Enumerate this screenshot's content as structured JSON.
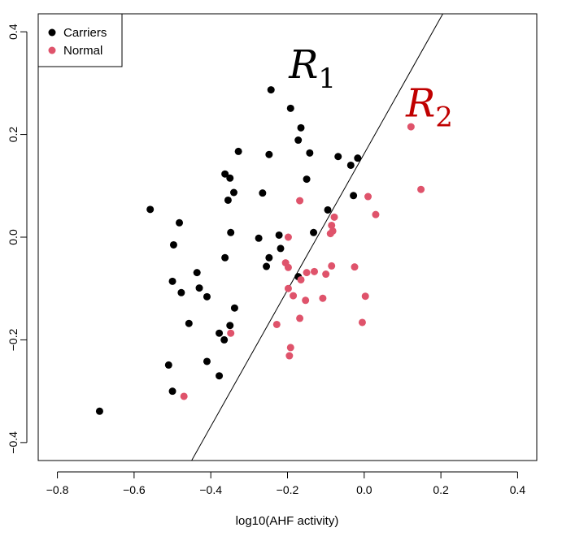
{
  "chart_data": {
    "type": "scatter",
    "xlabel": "log10(AHF activity)",
    "ylabel": "",
    "xlim": [
      -0.85,
      0.45
    ],
    "ylim": [
      -0.435,
      0.435
    ],
    "x_ticks": [
      -0.8,
      -0.6,
      -0.4,
      -0.2,
      0.0,
      0.2,
      0.4
    ],
    "x_tick_labels": [
      "−0.8",
      "−0.6",
      "−0.4",
      "−0.2",
      "0.0",
      "0.2",
      "0.4"
    ],
    "y_ticks": [
      -0.4,
      -0.2,
      0.0,
      0.2,
      0.4
    ],
    "y_tick_labels": [
      "−0.4",
      "−0.2",
      "0.0",
      "0.2",
      "0.4"
    ],
    "grid": false,
    "legend_position": "top-left",
    "series": [
      {
        "name": "Carriers",
        "color": "#000000",
        "points": [
          [
            -0.69,
            -0.339
          ],
          [
            -0.558,
            0.054
          ],
          [
            -0.482,
            0.028
          ],
          [
            -0.497,
            -0.015
          ],
          [
            -0.5,
            -0.086
          ],
          [
            -0.477,
            -0.108
          ],
          [
            -0.436,
            -0.069
          ],
          [
            -0.43,
            -0.099
          ],
          [
            -0.41,
            -0.116
          ],
          [
            -0.457,
            -0.168
          ],
          [
            -0.41,
            -0.242
          ],
          [
            -0.51,
            -0.249
          ],
          [
            -0.5,
            -0.3
          ],
          [
            -0.378,
            -0.187
          ],
          [
            -0.378,
            -0.27
          ],
          [
            -0.365,
            -0.2
          ],
          [
            -0.35,
            -0.172
          ],
          [
            -0.338,
            -0.138
          ],
          [
            -0.363,
            -0.04
          ],
          [
            -0.348,
            0.009
          ],
          [
            -0.363,
            0.123
          ],
          [
            -0.35,
            0.115
          ],
          [
            -0.355,
            0.072
          ],
          [
            -0.34,
            0.087
          ],
          [
            -0.328,
            0.167
          ],
          [
            -0.265,
            0.086
          ],
          [
            -0.275,
            -0.002
          ],
          [
            -0.255,
            -0.057
          ],
          [
            -0.248,
            -0.04
          ],
          [
            -0.248,
            0.161
          ],
          [
            -0.243,
            0.287
          ],
          [
            -0.222,
            0.004
          ],
          [
            -0.218,
            -0.022
          ],
          [
            -0.192,
            0.251
          ],
          [
            -0.172,
            0.189
          ],
          [
            -0.165,
            0.213
          ],
          [
            -0.142,
            0.164
          ],
          [
            -0.15,
            0.113
          ],
          [
            -0.172,
            -0.077
          ],
          [
            -0.132,
            0.009
          ],
          [
            -0.095,
            0.053
          ],
          [
            -0.068,
            0.157
          ],
          [
            -0.035,
            0.14
          ],
          [
            -0.017,
            0.154
          ],
          [
            -0.028,
            0.081
          ]
        ]
      },
      {
        "name": "Normal",
        "color": "#DF536B",
        "points": [
          [
            0.122,
            0.215
          ],
          [
            0.148,
            0.093
          ],
          [
            0.01,
            0.079
          ],
          [
            0.03,
            0.044
          ],
          [
            -0.078,
            0.039
          ],
          [
            -0.085,
            0.023
          ],
          [
            -0.082,
            0.012
          ],
          [
            -0.088,
            0.007
          ],
          [
            -0.168,
            0.071
          ],
          [
            -0.198,
            0.0
          ],
          [
            -0.198,
            -0.059
          ],
          [
            -0.205,
            -0.05
          ],
          [
            -0.15,
            -0.069
          ],
          [
            -0.13,
            -0.067
          ],
          [
            -0.1,
            -0.072
          ],
          [
            -0.085,
            -0.056
          ],
          [
            -0.025,
            -0.058
          ],
          [
            -0.165,
            -0.083
          ],
          [
            -0.198,
            -0.1
          ],
          [
            -0.185,
            -0.114
          ],
          [
            -0.153,
            -0.123
          ],
          [
            -0.108,
            -0.119
          ],
          [
            0.003,
            -0.115
          ],
          [
            -0.168,
            -0.158
          ],
          [
            -0.228,
            -0.17
          ],
          [
            -0.005,
            -0.166
          ],
          [
            -0.192,
            -0.215
          ],
          [
            -0.195,
            -0.231
          ],
          [
            -0.348,
            -0.187
          ],
          [
            -0.47,
            -0.31
          ]
        ]
      }
    ],
    "lines": [
      {
        "x1": -0.45,
        "y1": -0.435,
        "x2": 0.205,
        "y2": 0.435,
        "color": "#000000"
      }
    ],
    "annotations": [
      {
        "label": "R",
        "subscript": "1",
        "x": -0.135,
        "y": 0.31,
        "color": "#000000"
      },
      {
        "label": "R",
        "subscript": "2",
        "x": 0.17,
        "y": 0.235,
        "color": "#C00000"
      }
    ]
  }
}
